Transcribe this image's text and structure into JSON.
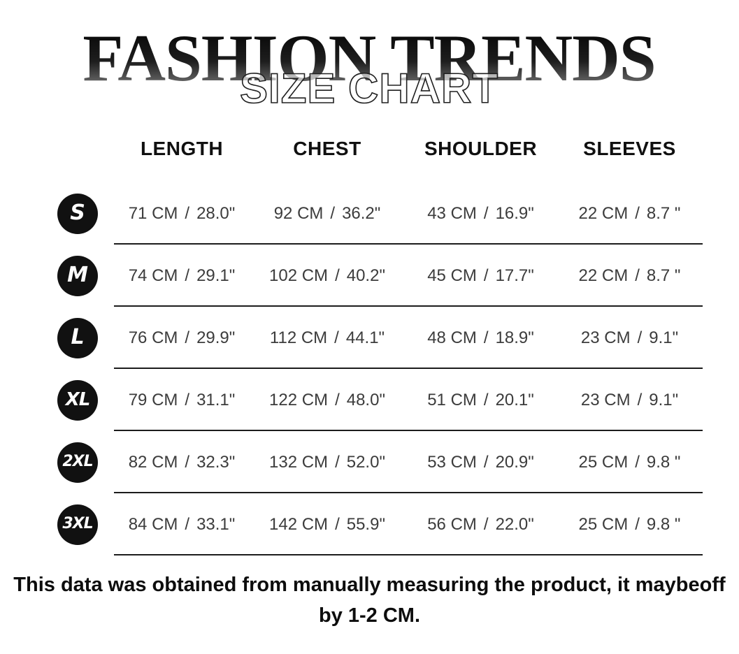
{
  "header": {
    "brand": "FASHION TRENDS",
    "subtitle": "SIZE CHART"
  },
  "table": {
    "columns": [
      "LENGTH",
      "CHEST",
      "SHOULDER",
      "SLEEVES"
    ],
    "separator": "/",
    "rows": [
      {
        "size": "S",
        "length": {
          "cm": "71 CM",
          "in": "28.0\""
        },
        "chest": {
          "cm": "92 CM",
          "in": "36.2\""
        },
        "shoulder": {
          "cm": "43 CM",
          "in": "16.9\""
        },
        "sleeves": {
          "cm": "22 CM",
          "in": "8.7 \""
        }
      },
      {
        "size": "M",
        "length": {
          "cm": "74 CM",
          "in": "29.1\""
        },
        "chest": {
          "cm": "102 CM",
          "in": "40.2\""
        },
        "shoulder": {
          "cm": "45 CM",
          "in": "17.7\""
        },
        "sleeves": {
          "cm": "22 CM",
          "in": "8.7 \""
        }
      },
      {
        "size": "L",
        "length": {
          "cm": "76 CM",
          "in": "29.9\""
        },
        "chest": {
          "cm": "112 CM",
          "in": "44.1\""
        },
        "shoulder": {
          "cm": "48 CM",
          "in": "18.9\""
        },
        "sleeves": {
          "cm": "23 CM",
          "in": "9.1\""
        }
      },
      {
        "size": "XL",
        "length": {
          "cm": "79 CM",
          "in": "31.1\""
        },
        "chest": {
          "cm": "122 CM",
          "in": "48.0\""
        },
        "shoulder": {
          "cm": "51 CM",
          "in": "20.1\""
        },
        "sleeves": {
          "cm": "23 CM",
          "in": "9.1\""
        }
      },
      {
        "size": "2XL",
        "length": {
          "cm": "82 CM",
          "in": "32.3\""
        },
        "chest": {
          "cm": "132 CM",
          "in": "52.0\""
        },
        "shoulder": {
          "cm": "53 CM",
          "in": "20.9\""
        },
        "sleeves": {
          "cm": "25 CM",
          "in": "9.8 \""
        }
      },
      {
        "size": "3XL",
        "length": {
          "cm": "84 CM",
          "in": "33.1\""
        },
        "chest": {
          "cm": "142 CM",
          "in": "55.9\""
        },
        "shoulder": {
          "cm": "56 CM",
          "in": "22.0\""
        },
        "sleeves": {
          "cm": "25 CM",
          "in": "9.8 \""
        }
      }
    ]
  },
  "footer": {
    "note_line1": "This data was obtained from manually measuring the product, it maybeoff",
    "note_line2": "by 1-2 CM."
  },
  "colors": {
    "badge_background": "#111111",
    "badge_text": "#ffffff",
    "brand_gradient_top": "#000000",
    "brand_gradient_bottom": "#8f8f8f",
    "row_line": "#1c1c1c",
    "cell_text": "#3c3c3c",
    "header_text": "#101010"
  }
}
